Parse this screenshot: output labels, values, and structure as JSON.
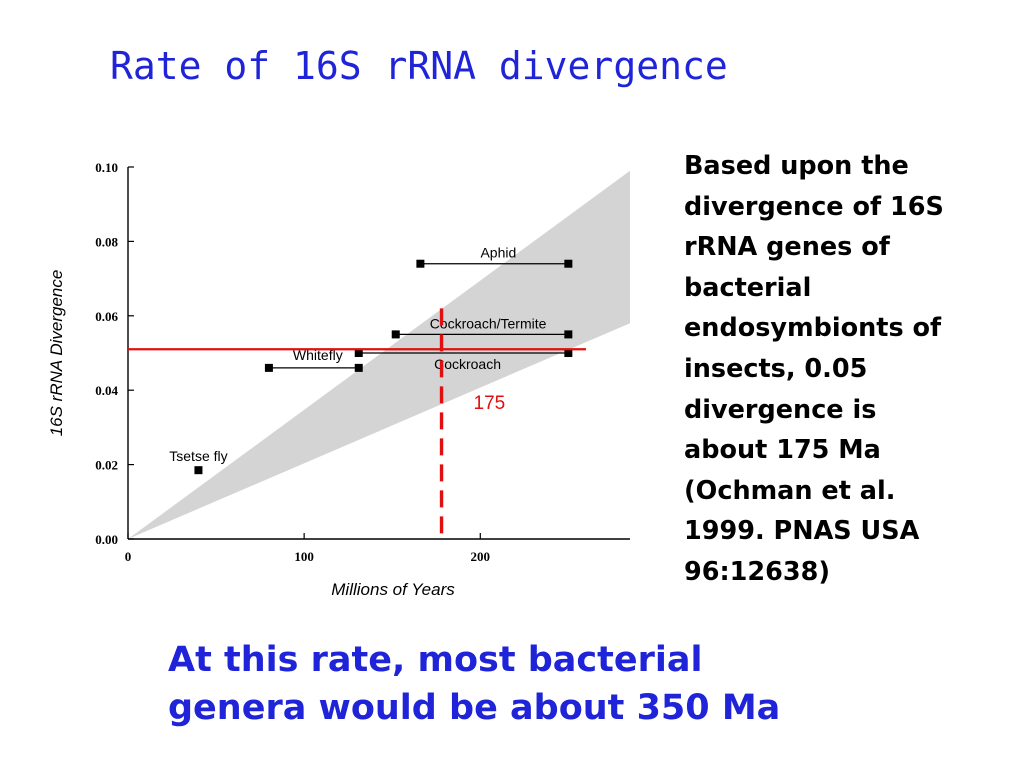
{
  "slide": {
    "title": "Rate of 16S rRNA divergence",
    "side_note": "Based upon the\ndivergence of 16S\nrRNA genes of\nbacterial\nendosymbionts of\ninsects, 0.05\ndivergence is\nabout 175 Ma\n(Ochman et al.\n1999. PNAS USA\n96:12638)",
    "footer_note": "At this rate, most bacterial\ngenera would be about 350 Ma"
  },
  "colors": {
    "title_blue": "#1f24d8",
    "annotation_red": "#e01010",
    "band_gray": "#d4d4d4"
  },
  "chart_data": {
    "type": "scatter",
    "title": "",
    "xlabel": "Millions of Years",
    "ylabel": "16S rRNA Divergence",
    "xlim": [
      0,
      285
    ],
    "ylim": [
      0,
      0.1
    ],
    "x_ticks": [
      {
        "value": 0,
        "label": "0"
      },
      {
        "value": 100,
        "label": "100"
      },
      {
        "value": 200,
        "label": "200"
      }
    ],
    "y_ticks": [
      {
        "value": 0,
        "label": "0.00"
      },
      {
        "value": 0.02,
        "label": "0.02"
      },
      {
        "value": 0.04,
        "label": "0.04"
      },
      {
        "value": 0.06,
        "label": "0.06"
      },
      {
        "value": 0.08,
        "label": "0.08"
      },
      {
        "value": 0.1,
        "label": "0.10"
      }
    ],
    "rate_band": {
      "from": [
        0,
        0
      ],
      "upper_end": [
        285,
        0.099
      ],
      "lower_end": [
        285,
        0.058
      ]
    },
    "groups": [
      {
        "name": "Aphid",
        "y": 0.074,
        "x_min": 166,
        "x_max": 250
      },
      {
        "name": "Cockroach/Termite",
        "y": 0.055,
        "x_min": 152,
        "x_max": 250
      },
      {
        "name": "Whitefly",
        "y": 0.046,
        "x_min": 80,
        "x_max": 131
      },
      {
        "name": "Cockroach",
        "y": 0.05,
        "x_min": 131,
        "x_max": 250
      },
      {
        "name": "Tsetse fly",
        "y": 0.0185,
        "x_min": 40,
        "x_max": 40
      }
    ],
    "annotations": {
      "h_line_y": 0.051,
      "h_line_x_range": [
        0,
        260
      ],
      "v_line_x": 178,
      "v_line_y_range": [
        0,
        0.062
      ],
      "v_label": "175"
    }
  }
}
